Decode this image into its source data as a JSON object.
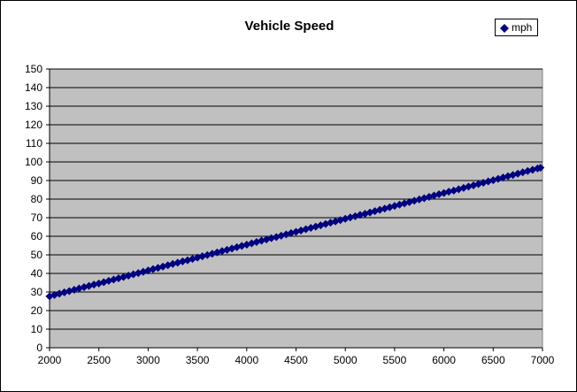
{
  "chart_data": {
    "type": "scatter",
    "title": "Vehicle Speed",
    "xlabel": "",
    "ylabel": "",
    "xlim": [
      2000,
      7000
    ],
    "ylim": [
      0,
      150
    ],
    "xticks": [
      2000,
      2500,
      3000,
      3500,
      4000,
      4500,
      5000,
      5500,
      6000,
      6500,
      7000
    ],
    "yticks": [
      0,
      10,
      20,
      30,
      40,
      50,
      60,
      70,
      80,
      90,
      100,
      110,
      120,
      130,
      140,
      150
    ],
    "grid": "horizontal",
    "legend": "top-right",
    "plot_background": "#c0c0c0",
    "series": [
      {
        "name": "mph",
        "color": "#000080",
        "marker": "diamond",
        "x": [
          2000,
          2050,
          2100,
          2150,
          2200,
          2250,
          2300,
          2350,
          2400,
          2450,
          2500,
          2550,
          2600,
          2650,
          2700,
          2750,
          2800,
          2850,
          2900,
          2950,
          3000,
          3050,
          3100,
          3150,
          3200,
          3250,
          3300,
          3350,
          3400,
          3450,
          3500,
          3550,
          3600,
          3650,
          3700,
          3750,
          3800,
          3850,
          3900,
          3950,
          4000,
          4050,
          4100,
          4150,
          4200,
          4250,
          4300,
          4350,
          4400,
          4450,
          4500,
          4550,
          4600,
          4650,
          4700,
          4750,
          4800,
          4850,
          4900,
          4950,
          5000,
          5050,
          5100,
          5150,
          5200,
          5250,
          5300,
          5350,
          5400,
          5450,
          5500,
          5550,
          5600,
          5650,
          5700,
          5750,
          5800,
          5850,
          5900,
          5950,
          6000,
          6050,
          6100,
          6150,
          6200,
          6250,
          6300,
          6350,
          6400,
          6450,
          6500,
          6550,
          6600,
          6650,
          6700,
          6750,
          6800,
          6850,
          6900,
          6950,
          6980
        ],
        "y": [
          27.7,
          28.4,
          29.1,
          29.8,
          30.5,
          31.2,
          31.9,
          32.6,
          33.3,
          34.0,
          34.6,
          35.3,
          36.0,
          36.7,
          37.4,
          38.1,
          38.8,
          39.5,
          40.2,
          40.9,
          41.6,
          42.3,
          43.0,
          43.7,
          44.4,
          45.1,
          45.8,
          46.5,
          47.1,
          47.8,
          48.5,
          49.2,
          49.9,
          50.6,
          51.3,
          52.0,
          52.7,
          53.4,
          54.1,
          54.8,
          55.5,
          56.2,
          56.9,
          57.6,
          58.3,
          59.0,
          59.6,
          60.3,
          61.0,
          61.7,
          62.4,
          63.1,
          63.8,
          64.5,
          65.2,
          65.9,
          66.6,
          67.3,
          68.0,
          68.7,
          69.4,
          70.1,
          70.8,
          71.5,
          72.1,
          72.8,
          73.5,
          74.2,
          74.9,
          75.6,
          76.3,
          77.0,
          77.7,
          78.4,
          79.1,
          79.8,
          80.5,
          81.2,
          81.9,
          82.6,
          83.3,
          84.0,
          84.6,
          85.3,
          86.0,
          86.7,
          87.4,
          88.1,
          88.8,
          89.5,
          90.2,
          90.9,
          91.6,
          92.3,
          93.0,
          93.7,
          94.4,
          95.1,
          95.8,
          96.5,
          96.9
        ]
      }
    ]
  }
}
